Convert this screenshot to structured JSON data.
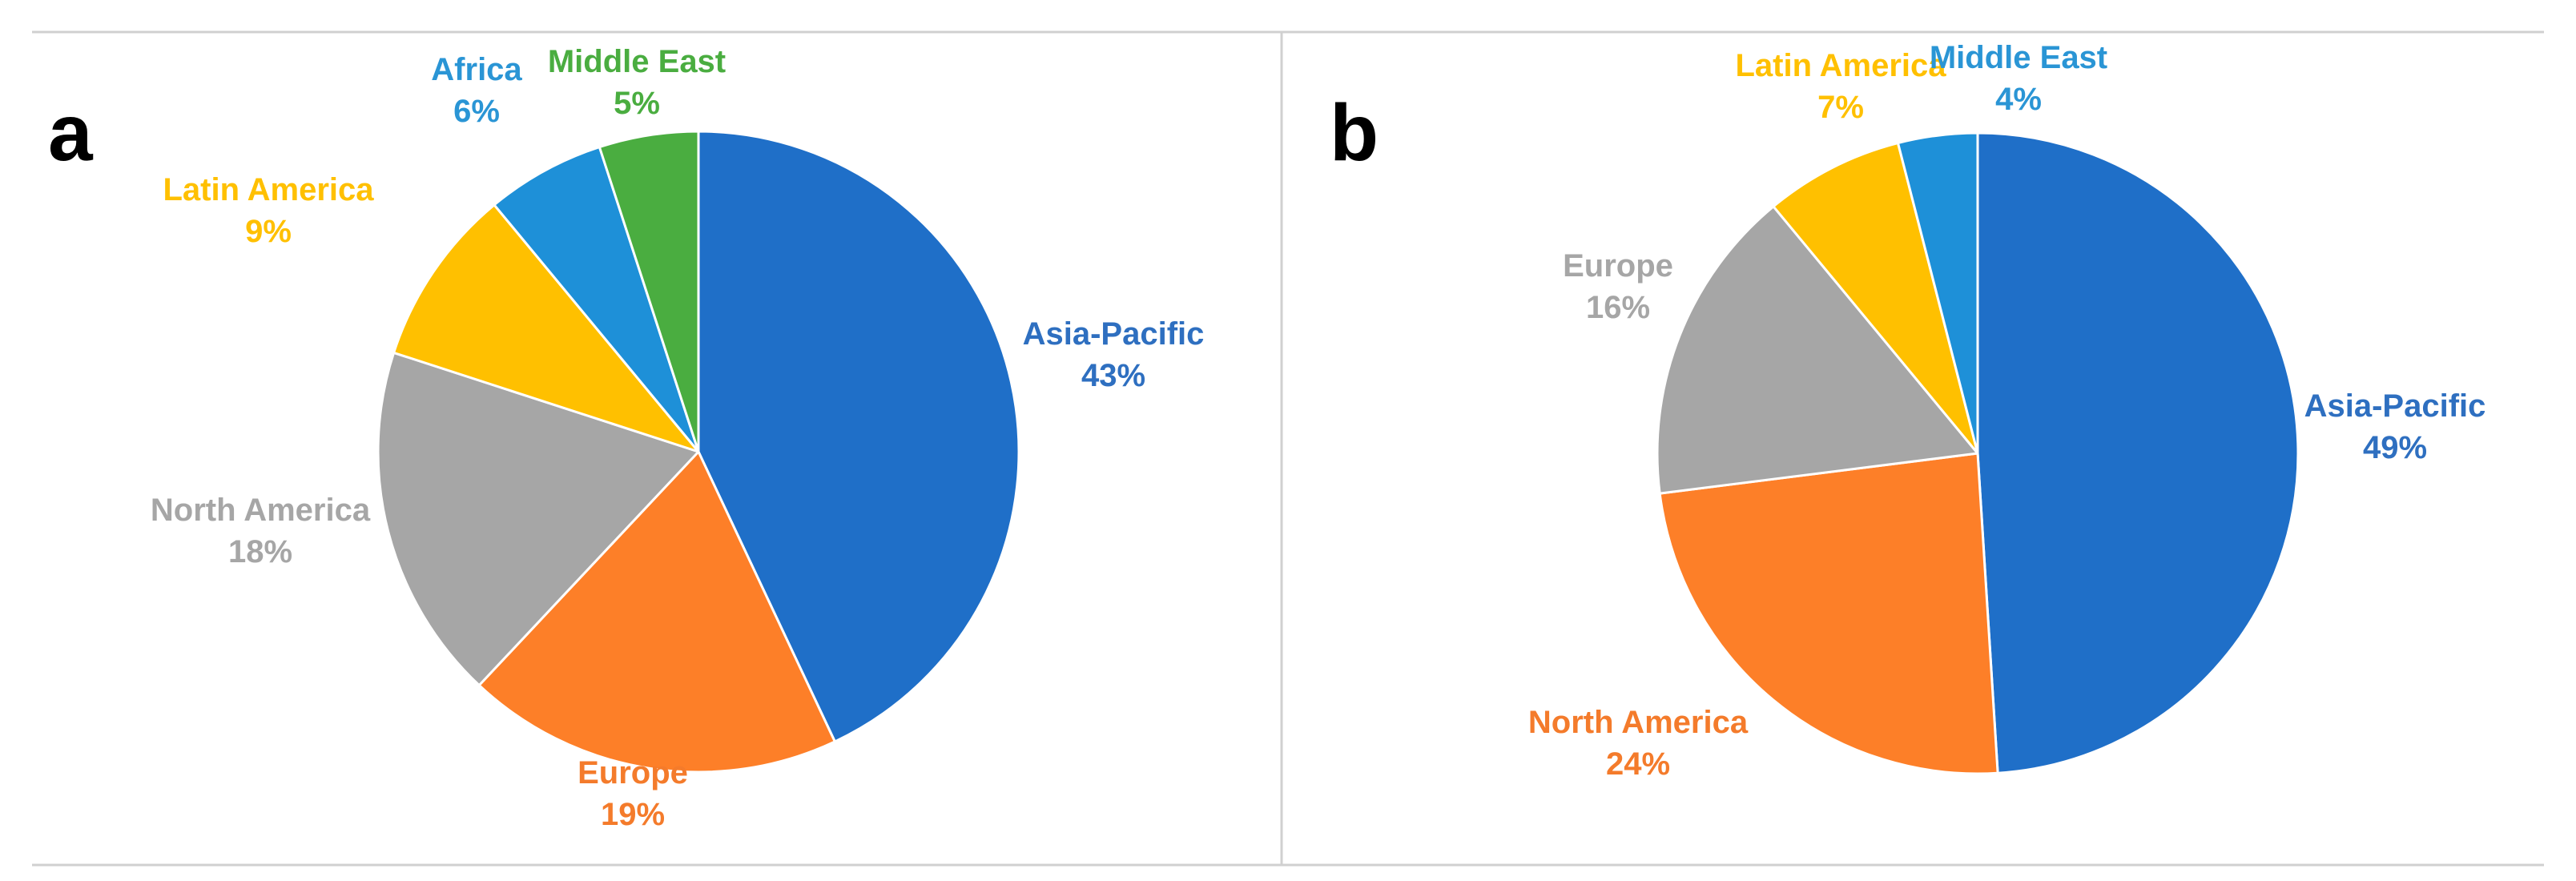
{
  "colors": {
    "frame": "#d0d0d0",
    "slice_stroke": "#ffffff"
  },
  "chart_data": [
    {
      "type": "pie",
      "panel_label": "a",
      "title": "",
      "slices": [
        {
          "name": "Asia-Pacific",
          "value": 43,
          "value_label": "43%",
          "color": "#1f6fc8",
          "label_color": "#2e6fc0"
        },
        {
          "name": "Europe",
          "value": 19,
          "value_label": "19%",
          "color": "#fd7f28",
          "label_color": "#f47b2b"
        },
        {
          "name": "North America",
          "value": 18,
          "value_label": "18%",
          "color": "#a6a6a6",
          "label_color": "#a6a6a6"
        },
        {
          "name": "Latin America",
          "value": 9,
          "value_label": "9%",
          "color": "#ffc000",
          "label_color": "#ffc000"
        },
        {
          "name": "Africa",
          "value": 6,
          "value_label": "6%",
          "color": "#1e90d8",
          "label_color": "#2a95d5"
        },
        {
          "name": "Middle East",
          "value": 5,
          "value_label": "5%",
          "color": "#4aad40",
          "label_color": "#4aad40"
        }
      ]
    },
    {
      "type": "pie",
      "panel_label": "b",
      "title": "",
      "slices": [
        {
          "name": "Asia-Pacific",
          "value": 49,
          "value_label": "49%",
          "color": "#1f6fc8",
          "label_color": "#2e6fc0"
        },
        {
          "name": "North America",
          "value": 24,
          "value_label": "24%",
          "color": "#fd7f28",
          "label_color": "#f47b2b"
        },
        {
          "name": "Europe",
          "value": 16,
          "value_label": "16%",
          "color": "#a6a6a6",
          "label_color": "#a6a6a6"
        },
        {
          "name": "Latin America",
          "value": 7,
          "value_label": "7%",
          "color": "#ffc000",
          "label_color": "#ffc000"
        },
        {
          "name": "Middle East",
          "value": 4,
          "value_label": "4%",
          "color": "#1e90d8",
          "label_color": "#2a95d5"
        }
      ]
    }
  ]
}
